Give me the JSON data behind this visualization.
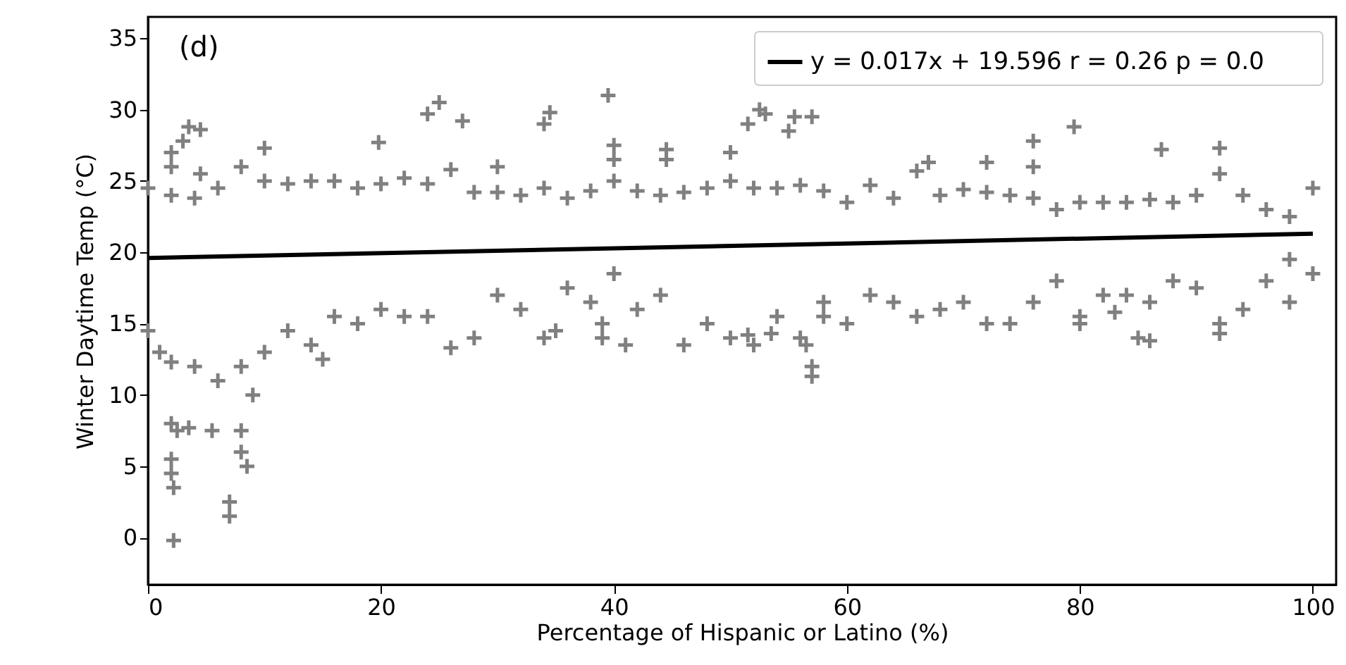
{
  "chart_data": {
    "type": "scatter",
    "xlabel": "Percentage of Hispanic or Latino (%)",
    "ylabel": "Winter Daytime Temp (°C)",
    "annotations": [
      "(d)"
    ],
    "xlim": [
      0,
      102
    ],
    "ylim": [
      -3.3,
      36.5
    ],
    "xticks": [
      0,
      20,
      40,
      60,
      80,
      100
    ],
    "yticks": [
      0,
      5,
      10,
      15,
      20,
      25,
      30,
      35
    ],
    "grid": false,
    "legend": "top right",
    "series": [
      {
        "marker": "cross",
        "color": "#808080",
        "x": [
          0,
          2,
          4,
          6,
          8,
          10,
          12,
          14,
          16,
          18,
          20,
          22,
          24,
          26,
          28,
          30,
          32,
          34,
          36,
          38,
          40,
          42,
          44,
          46,
          48,
          50,
          52,
          54,
          56,
          58,
          60,
          62,
          64,
          66,
          67,
          68,
          70,
          72,
          74,
          76,
          78,
          80,
          82,
          84,
          86,
          88,
          90,
          92,
          94,
          96,
          98,
          100,
          0,
          1,
          2,
          4,
          6,
          8,
          10,
          12,
          14,
          15,
          16,
          18,
          20,
          22,
          24,
          26,
          28,
          30,
          32,
          34,
          35,
          36,
          38,
          40,
          42,
          44,
          46,
          48,
          50,
          52,
          54,
          56,
          58,
          60,
          62,
          64,
          66,
          68,
          70,
          72,
          74,
          76,
          78,
          80,
          82,
          84,
          86,
          88,
          90,
          92,
          94,
          96,
          98,
          100,
          2,
          2,
          3,
          3.5,
          4.5,
          2,
          2.5,
          3.5,
          2,
          2,
          2.2,
          2.2,
          5.5,
          7,
          7,
          8,
          8,
          9,
          8.5,
          10,
          4.5,
          19.8,
          24,
          25,
          27,
          30,
          34,
          34.5,
          39.5,
          40,
          40,
          39,
          39,
          41,
          44.5,
          44.5,
          50,
          51.5,
          52.5,
          53,
          55,
          55.5,
          57,
          51.5,
          53.5,
          56.5,
          57,
          57,
          58,
          72,
          76,
          76,
          79.5,
          80,
          83,
          85,
          86,
          87,
          92,
          92,
          98
        ],
        "values": [
          24.5,
          24,
          23.8,
          24.5,
          26,
          25,
          24.8,
          25,
          25,
          24.5,
          24.8,
          25.2,
          24.8,
          25.8,
          24.2,
          24.2,
          24,
          24.5,
          23.8,
          24.3,
          25,
          24.3,
          24,
          24.2,
          24.5,
          25,
          24.5,
          24.5,
          24.7,
          24.3,
          23.5,
          24.7,
          23.8,
          25.7,
          26.3,
          24,
          24.4,
          24.2,
          24,
          23.8,
          23,
          23.5,
          23.5,
          23.5,
          23.7,
          23.5,
          24,
          25.5,
          24,
          23,
          22.5,
          24.5,
          14.5,
          13,
          12.3,
          12,
          11,
          12,
          13,
          14.5,
          13.5,
          12.5,
          15.5,
          15,
          16,
          15.5,
          15.5,
          13.3,
          14,
          17,
          16,
          14,
          14.5,
          17.5,
          16.5,
          18.5,
          16,
          17,
          13.5,
          15,
          14,
          13.5,
          15.5,
          14,
          16.5,
          15,
          17,
          16.5,
          15.5,
          16,
          16.5,
          15,
          15,
          16.5,
          18,
          15,
          17,
          17,
          16.5,
          18,
          17.5,
          15,
          16,
          18,
          16.5,
          18.5,
          27,
          26,
          27.8,
          28.8,
          28.6,
          8,
          7.5,
          7.7,
          5.5,
          4.5,
          3.5,
          -0.2,
          7.5,
          2.5,
          1.5,
          6,
          7.5,
          10,
          5,
          27.3,
          25.5,
          27.7,
          29.7,
          30.5,
          29.2,
          26,
          29,
          29.8,
          31,
          26.5,
          27.5,
          15,
          14,
          13.5,
          26.5,
          27.2,
          27,
          29,
          30,
          29.7,
          28.5,
          29.5,
          29.5,
          14.2,
          14.3,
          13.5,
          12,
          11.3,
          15.5,
          26.3,
          27.8,
          26,
          28.8,
          15.5,
          15.8,
          14,
          13.8,
          27.2,
          27.3,
          14.3,
          19.5
        ]
      },
      {
        "type": "line",
        "name": "y = 0.017x + 19.596    r = 0.26    p = 0.0",
        "color": "#000000",
        "line_style": "solid",
        "x": [
          0,
          100
        ],
        "values": [
          19.6,
          21.3
        ]
      }
    ]
  }
}
